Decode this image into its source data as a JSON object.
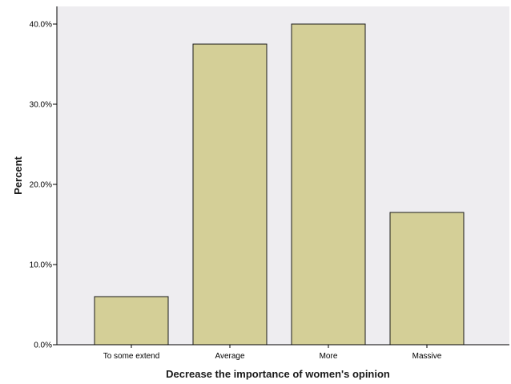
{
  "chart_data": {
    "type": "bar",
    "title": "",
    "xlabel": "Decrease  the importance of women's opinion",
    "ylabel": "Percent",
    "categories": [
      "To some extend",
      "Average",
      "More",
      "Massive"
    ],
    "values": [
      6.0,
      37.5,
      40.0,
      16.5
    ],
    "ylim": [
      0,
      40
    ],
    "yticks": [
      "0.0%",
      "10.0%",
      "20.0%",
      "30.0%",
      "40.0%"
    ],
    "ytick_values": [
      0,
      10,
      20,
      30,
      40
    ],
    "grid": false,
    "legend": "none",
    "colors": {
      "bar_fill": "#d4cf97",
      "bar_stroke": "#1a1a1a",
      "plot_background": "#eeedf0",
      "axis": "#000000"
    }
  }
}
